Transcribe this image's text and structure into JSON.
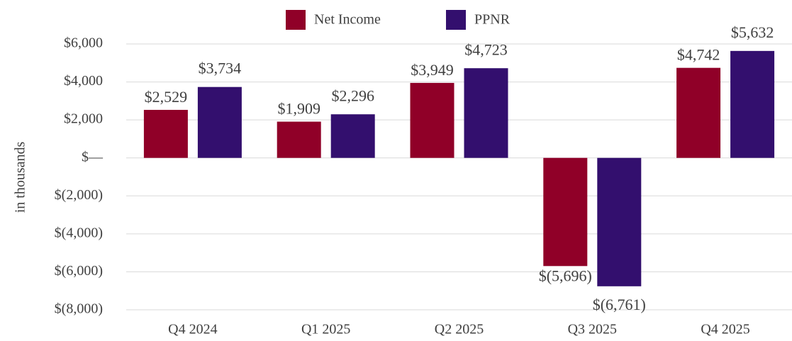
{
  "chart_data": {
    "type": "bar",
    "y_label": "in thousands",
    "categories": [
      "Q4 2024",
      "Q1 2025",
      "Q2 2025",
      "Q3 2025",
      "Q4 2025"
    ],
    "series": [
      {
        "name": "Net Income",
        "color": "#900028",
        "values": [
          2529,
          1909,
          3949,
          -5696,
          4742
        ],
        "value_labels": [
          "$2,529",
          "$1,909",
          "$3,949",
          "$(5,696)",
          "$4,742"
        ]
      },
      {
        "name": "PPNR",
        "color": "#330f6e",
        "values": [
          3734,
          2296,
          4723,
          -6761,
          5632
        ],
        "value_labels": [
          "$3,734",
          "$2,296",
          "$4,723",
          "$(6,761)",
          "$5,632"
        ]
      }
    ],
    "ylim": [
      -8000,
      6000
    ],
    "yticks": [
      {
        "value": -8000,
        "label": "$(8,000)"
      },
      {
        "value": -6000,
        "label": "$(6,000)"
      },
      {
        "value": -4000,
        "label": "$(4,000)"
      },
      {
        "value": -2000,
        "label": "$(2,000)"
      },
      {
        "value": 0,
        "label": "$—"
      },
      {
        "value": 2000,
        "label": "$2,000"
      },
      {
        "value": 4000,
        "label": "$4,000"
      },
      {
        "value": 6000,
        "label": "$6,000"
      }
    ],
    "grid": true,
    "legend": "top"
  }
}
